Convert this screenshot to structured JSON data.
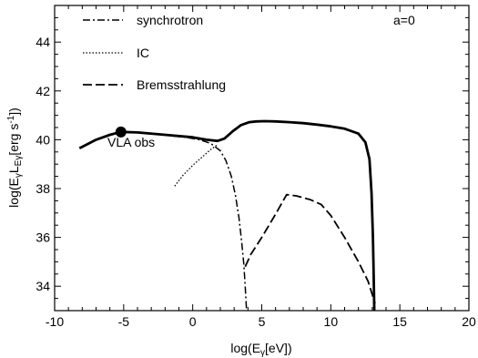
{
  "chart_data": {
    "type": "line",
    "xlabel": "log(Eγ[eV])",
    "ylabel": "log(EγLEγ[erg s-1])",
    "xlim": [
      -10,
      20
    ],
    "ylim": [
      33,
      45.5
    ],
    "x_ticks": [
      -10,
      -5,
      0,
      5,
      10,
      15,
      20
    ],
    "y_ticks": [
      34,
      36,
      38,
      40,
      42,
      44
    ],
    "x_tick_labels": [
      "-10",
      "-5",
      "0",
      "5",
      "10",
      "15",
      "20"
    ],
    "y_tick_labels": [
      "34",
      "36",
      "38",
      "40",
      "42",
      "44"
    ],
    "grid": false,
    "legend_position": "top-left",
    "annotation_corner": "a=0",
    "series": [
      {
        "name": "synchrotron",
        "style": "dashdot",
        "x": [
          -1.4,
          -0.5,
          0.5,
          1.3,
          2.0,
          2.4,
          2.8,
          3.1,
          3.35,
          3.55,
          3.7,
          3.8,
          3.9
        ],
        "y": [
          40.15,
          40.1,
          40.0,
          39.85,
          39.55,
          39.15,
          38.5,
          37.7,
          36.8,
          35.8,
          34.9,
          34.0,
          33.0
        ]
      },
      {
        "name": "IC",
        "style": "dotted",
        "x": [
          -1.3,
          -0.7,
          0,
          0.7,
          1.3,
          1.8
        ],
        "y": [
          38.1,
          38.55,
          38.95,
          39.3,
          39.6,
          39.8
        ]
      },
      {
        "name": "Bremsstrahlung",
        "style": "dashed",
        "x": [
          3.8,
          4.2,
          5.0,
          6.0,
          6.8,
          7.5,
          8.5,
          9.3,
          10.0,
          11.0,
          12.0,
          12.7,
          13.2
        ],
        "y": [
          34.8,
          35.3,
          36.0,
          36.95,
          37.75,
          37.7,
          37.55,
          37.35,
          36.9,
          36.0,
          35.0,
          34.2,
          33.3
        ]
      },
      {
        "name": "",
        "style": "solid",
        "x": [
          -8.2,
          -7,
          -6,
          -5.2,
          -4,
          -2,
          0,
          1.0,
          1.8,
          2.3,
          2.9,
          3.5,
          4.1,
          4.6,
          5.2,
          6.0,
          7.0,
          8.0,
          9.0,
          10.0,
          11.0,
          12.0,
          12.5,
          12.8,
          12.95,
          13.05,
          13.1,
          13.15
        ],
        "y": [
          39.65,
          40.0,
          40.2,
          40.32,
          40.3,
          40.2,
          40.1,
          40.0,
          39.95,
          40.05,
          40.35,
          40.6,
          40.72,
          40.75,
          40.76,
          40.75,
          40.72,
          40.68,
          40.62,
          40.55,
          40.45,
          40.25,
          39.9,
          39.2,
          37.8,
          36.0,
          34.5,
          33.0
        ]
      }
    ],
    "annotations": [
      {
        "text": "VLA obs",
        "x": -5.2,
        "y": 40.32
      }
    ]
  }
}
